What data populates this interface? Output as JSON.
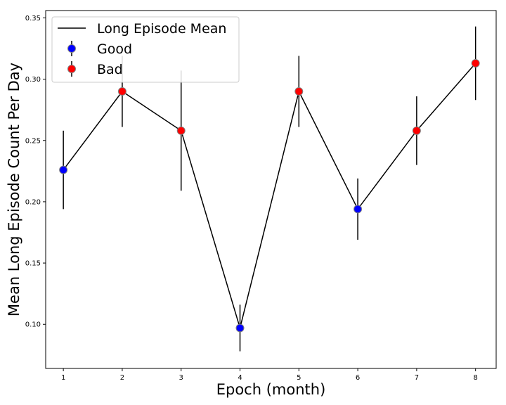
{
  "chart_data": {
    "type": "line",
    "xlabel": "Epoch (month)",
    "ylabel": "Mean Long Episode Count Per Day",
    "xlim": [
      0.7,
      8.35
    ],
    "ylim": [
      0.064,
      0.356
    ],
    "x_ticks": [
      1,
      2,
      3,
      4,
      5,
      6,
      7,
      8
    ],
    "y_ticks": [
      0.1,
      0.15,
      0.2,
      0.25,
      0.3,
      0.35
    ],
    "grid": false,
    "legend": {
      "placement": "top-left",
      "entries": [
        {
          "label": "Long Episode Mean",
          "kind": "line",
          "color": "#000000"
        },
        {
          "label": "Good",
          "kind": "errorbar-marker",
          "color": "#0000ff"
        },
        {
          "label": "Bad",
          "kind": "errorbar-marker",
          "color": "#ff0000"
        }
      ]
    },
    "line_color": "#000000",
    "marker_edge_color": "#808080",
    "points": [
      {
        "x": 1,
        "y": 0.226,
        "err": 0.032,
        "class": "Good"
      },
      {
        "x": 2,
        "y": 0.29,
        "err": 0.029,
        "class": "Bad"
      },
      {
        "x": 3,
        "y": 0.258,
        "err": 0.049,
        "class": "Bad"
      },
      {
        "x": 4,
        "y": 0.097,
        "err": 0.019,
        "class": "Good"
      },
      {
        "x": 5,
        "y": 0.29,
        "err": 0.029,
        "class": "Bad"
      },
      {
        "x": 6,
        "y": 0.194,
        "err": 0.025,
        "class": "Good"
      },
      {
        "x": 7,
        "y": 0.258,
        "err": 0.028,
        "class": "Bad"
      },
      {
        "x": 8,
        "y": 0.313,
        "err": 0.03,
        "class": "Bad"
      }
    ]
  }
}
